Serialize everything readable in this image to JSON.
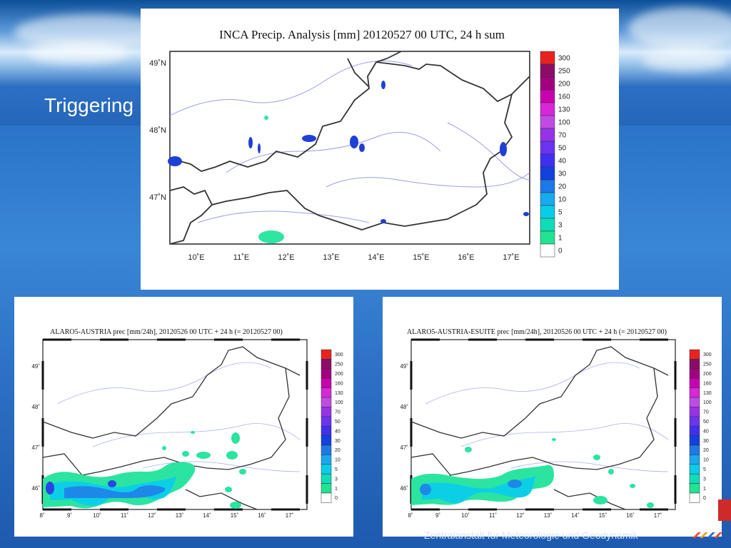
{
  "slide": {
    "title": "Triggering",
    "footer": "Zentralanstalt für Meteorologie und Geodynamik"
  },
  "colors": {
    "slide_blue": "#2a73c8",
    "border": "#3c3c3c",
    "river": "#8f94e8"
  },
  "color_scale": {
    "labels": [
      "300",
      "250",
      "200",
      "160",
      "130",
      "100",
      "70",
      "50",
      "40",
      "30",
      "20",
      "10",
      "5",
      "3",
      "1",
      "0"
    ],
    "colors": [
      "#e8231f",
      "#8b0d67",
      "#a3007f",
      "#c800b0",
      "#d727d7",
      "#c04be3",
      "#9733e6",
      "#6a34f0",
      "#3f2ff0",
      "#1440e0",
      "#1d78e8",
      "#18a9ef",
      "#08cde8",
      "#0fdcb8",
      "#20e491",
      "#ffffff"
    ]
  },
  "maps": {
    "inca": {
      "title": "INCA Precip. Analysis [mm] 20120527 00 UTC, 24 h sum",
      "lon_labels": [
        "10˚E",
        "11˚E",
        "12˚E",
        "13˚E",
        "14˚E",
        "15˚E",
        "16˚E",
        "17˚E"
      ],
      "lat_labels": [
        "49˚N",
        "48˚N",
        "47˚N"
      ]
    },
    "alaro": {
      "title": "ALARO5-AUSTRIA prec [mm/24h], 20120526 00 UTC + 24 h (= 20120527 00)",
      "lon_labels": [
        "8˚",
        "9˚",
        "10˚",
        "11˚",
        "12˚",
        "13˚",
        "14˚",
        "15˚",
        "16˚",
        "17˚"
      ],
      "lat_labels": [
        "49˚",
        "48˚",
        "47˚",
        "46˚"
      ]
    },
    "esuite": {
      "title": "ALARO5-AUSTRIA-ESUITE prec [mm/24h], 20120526 00 UTC + 24 h (= 20120527 00)",
      "lon_labels": [
        "8˚",
        "9˚",
        "10˚",
        "11˚",
        "12˚",
        "13˚",
        "14˚",
        "15˚",
        "16˚",
        "17˚"
      ],
      "lat_labels": [
        "49˚",
        "48˚",
        "47˚",
        "46˚"
      ]
    }
  }
}
